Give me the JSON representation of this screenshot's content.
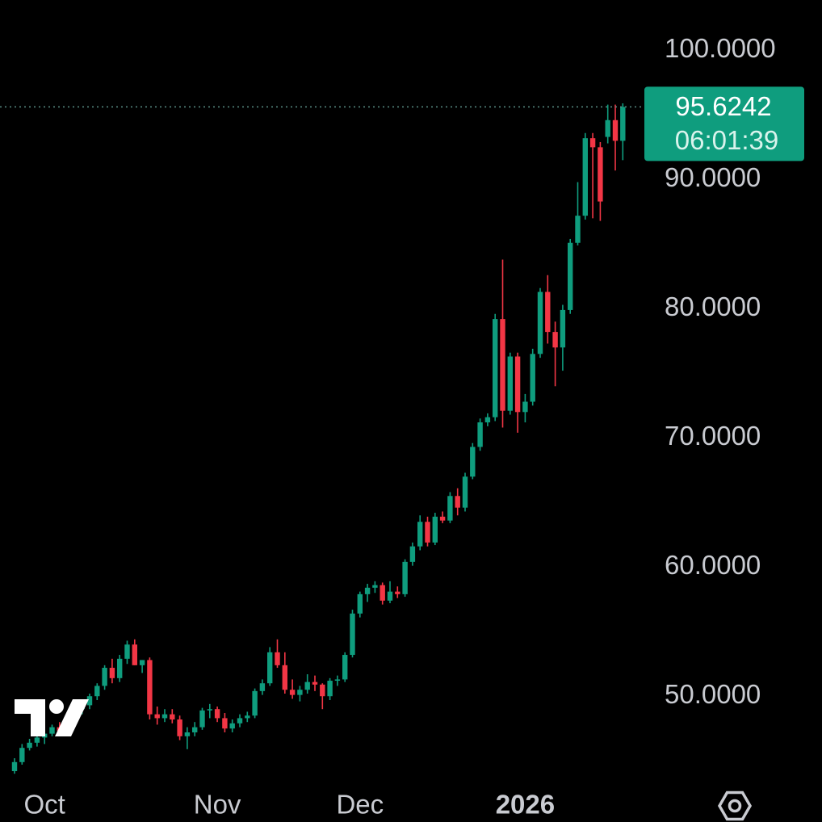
{
  "chart_data": {
    "type": "candlestick",
    "categories": [
      null,
      null,
      null,
      null,
      null,
      null,
      null,
      null,
      null,
      null,
      null,
      null,
      null,
      null,
      null,
      null,
      null,
      null,
      null,
      null,
      null,
      null,
      null,
      null,
      null,
      null,
      null,
      null,
      null,
      null,
      null,
      null,
      null,
      null,
      null,
      null,
      null,
      null,
      null,
      null,
      null,
      null,
      null,
      null,
      null,
      null,
      null,
      null,
      null,
      null,
      null,
      null,
      null,
      null,
      null,
      null,
      null,
      null,
      null,
      null,
      null,
      null,
      null,
      null,
      null,
      null,
      null,
      null,
      null,
      null,
      null,
      null,
      null,
      null,
      null,
      null,
      null,
      null,
      null,
      null,
      null,
      null
    ],
    "series": [
      {
        "up_color": "#0f9d7e",
        "down_color": "#f23645",
        "open": [
          44.2,
          44.9,
          46.0,
          46.4,
          46.8,
          47.1,
          47.6,
          47.3,
          48.4,
          49.0,
          49.3,
          50.0,
          50.8,
          52.2,
          51.4,
          52.9,
          54.0,
          52.4,
          52.8,
          48.6,
          48.3,
          48.6,
          48.2,
          46.9,
          47.2,
          47.6,
          48.9,
          49.0,
          48.3,
          47.5,
          47.9,
          48.3,
          48.5,
          50.4,
          51.0,
          53.4,
          52.4,
          50.5,
          50.1,
          50.5,
          51.1,
          50.9,
          50.0,
          51.2,
          51.3,
          53.2,
          56.4,
          57.9,
          58.4,
          58.6,
          57.4,
          58.1,
          57.9,
          60.4,
          61.6,
          63.5,
          61.9,
          63.9,
          63.6,
          65.5,
          64.6,
          67.0,
          69.3,
          71.2,
          71.6,
          79.2,
          72.1,
          76.3,
          72.0,
          72.8,
          76.5,
          81.3,
          78.2,
          77.0,
          79.9,
          85.1,
          87.2,
          93.2,
          92.5,
          93.3,
          94.6,
          93.0
        ],
        "high": [
          45.2,
          46.3,
          46.7,
          47.0,
          47.4,
          47.8,
          48.0,
          48.6,
          49.2,
          49.6,
          50.2,
          51.0,
          52.4,
          52.9,
          53.2,
          54.3,
          54.4,
          52.8,
          53.0,
          49.2,
          49.0,
          49.0,
          48.5,
          47.6,
          48.0,
          49.1,
          49.4,
          49.2,
          48.7,
          48.2,
          48.6,
          48.8,
          50.6,
          51.3,
          53.8,
          54.4,
          53.4,
          51.3,
          50.8,
          51.7,
          51.6,
          51.0,
          51.4,
          51.6,
          53.4,
          56.7,
          58.1,
          58.7,
          58.9,
          58.8,
          58.9,
          58.5,
          60.6,
          61.9,
          64.0,
          63.9,
          64.2,
          64.3,
          65.8,
          66.1,
          67.3,
          69.6,
          71.5,
          71.9,
          79.6,
          83.8,
          76.6,
          76.6,
          73.4,
          76.9,
          81.6,
          82.6,
          79.0,
          80.3,
          85.4,
          89.8,
          93.6,
          93.6,
          92.9,
          95.8,
          95.8,
          95.9
        ],
        "low": [
          44.0,
          44.7,
          45.8,
          46.1,
          46.3,
          46.9,
          47.0,
          47.1,
          48.0,
          48.6,
          49.0,
          49.7,
          50.5,
          51.0,
          51.1,
          52.5,
          52.4,
          51.8,
          48.2,
          47.8,
          48.0,
          47.9,
          46.6,
          45.9,
          46.9,
          47.4,
          48.3,
          48.0,
          47.2,
          47.2,
          47.6,
          48.0,
          48.3,
          50.1,
          50.8,
          52.2,
          50.2,
          49.8,
          49.6,
          50.2,
          50.4,
          49.0,
          49.7,
          50.8,
          51.1,
          53.0,
          56.1,
          57.3,
          58.0,
          57.1,
          57.2,
          57.6,
          57.7,
          60.1,
          61.3,
          61.6,
          61.7,
          63.4,
          63.4,
          64.0,
          64.3,
          66.8,
          69.0,
          70.9,
          71.3,
          70.8,
          71.8,
          70.4,
          71.2,
          72.5,
          76.2,
          77.3,
          74.0,
          75.2,
          79.6,
          84.9,
          86.9,
          87.0,
          86.8,
          92.8,
          90.7,
          91.5
        ],
        "close": [
          44.9,
          46.0,
          46.4,
          46.8,
          47.1,
          47.6,
          47.3,
          48.4,
          49.0,
          49.3,
          50.0,
          50.8,
          52.2,
          51.4,
          52.9,
          54.0,
          52.4,
          52.8,
          48.6,
          48.3,
          48.6,
          48.2,
          46.9,
          47.2,
          47.6,
          48.9,
          49.0,
          48.3,
          47.5,
          47.9,
          48.3,
          48.5,
          50.4,
          51.0,
          53.4,
          52.4,
          50.5,
          50.1,
          50.5,
          51.1,
          50.9,
          50.0,
          51.2,
          51.3,
          53.2,
          56.4,
          57.9,
          58.4,
          58.6,
          57.4,
          58.1,
          57.9,
          60.4,
          61.6,
          63.5,
          61.9,
          63.9,
          63.6,
          65.5,
          64.6,
          67.0,
          69.3,
          71.2,
          71.6,
          79.2,
          72.1,
          76.3,
          72.0,
          72.8,
          76.5,
          81.3,
          78.2,
          77.0,
          79.9,
          85.1,
          87.2,
          93.2,
          92.5,
          88.3,
          94.6,
          93.0,
          95.6242
        ]
      }
    ],
    "countdown": "06:01:39",
    "ylim": [
      44.2,
      103.9
    ],
    "yticks": [
      {
        "value": 50,
        "label": "50.0000"
      },
      {
        "value": 60,
        "label": "60.0000"
      },
      {
        "value": 70,
        "label": "70.0000"
      },
      {
        "value": 80,
        "label": "80.0000"
      },
      {
        "value": 90,
        "label": "90.0000"
      },
      {
        "value": 100,
        "label": "100.0000"
      }
    ],
    "xticks": [
      {
        "value": 4,
        "label": "Oct"
      },
      {
        "value": 27,
        "label": "Nov"
      },
      {
        "value": 46,
        "label": "Dec"
      },
      {
        "value": 68,
        "label": "2026"
      }
    ],
    "label_color": "#0f9d7e"
  }
}
